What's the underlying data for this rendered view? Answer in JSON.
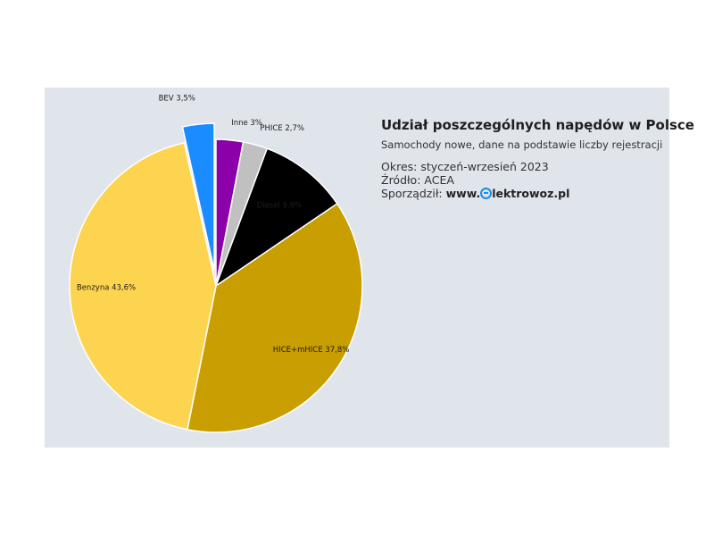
{
  "chart_data": {
    "type": "pie",
    "title": "Udział poszczególnych napędów w Polsce",
    "subtitle": "Samochody nowe, dane na podstawie liczby rejestracji",
    "start_angle_deg": 0,
    "direction": "clockwise",
    "slices": [
      {
        "name": "Inne",
        "label": "Inne 3%",
        "value": 3.0,
        "color": "#8b00a8",
        "exploded": false,
        "label_color": "#1e1e1e"
      },
      {
        "name": "PHICE",
        "label": "PHICE 2,7%",
        "value": 2.7,
        "color": "#c0c0c0",
        "exploded": false,
        "label_color": "#1e1e1e"
      },
      {
        "name": "Diesel",
        "label": "Diesel 9,9%",
        "value": 9.9,
        "color": "#000000",
        "exploded": false,
        "label_color": "#ffffff"
      },
      {
        "name": "HICE+mHICE",
        "label": "HICE+mHICE 37,8%",
        "value": 37.8,
        "color": "#c99e00",
        "exploded": false,
        "label_color": "#1e1e1e"
      },
      {
        "name": "Benzyna",
        "label": "Benzyna 43,6%",
        "value": 43.6,
        "color": "#fdd44f",
        "exploded": false,
        "label_color": "#1e1e1e"
      },
      {
        "name": "BEV",
        "label": "BEV 3,5%",
        "value": 3.5,
        "color": "#1a8cff",
        "exploded": true,
        "label_color": "#1e1e1e"
      }
    ]
  },
  "info": {
    "period": "Okres: styczeń-wrzesień 2023",
    "source": "Źródło: ACEA",
    "author_prefix": "Sporządził: ",
    "author_brand_pre": "www.",
    "author_brand_post": "lektrowoz.pl"
  }
}
